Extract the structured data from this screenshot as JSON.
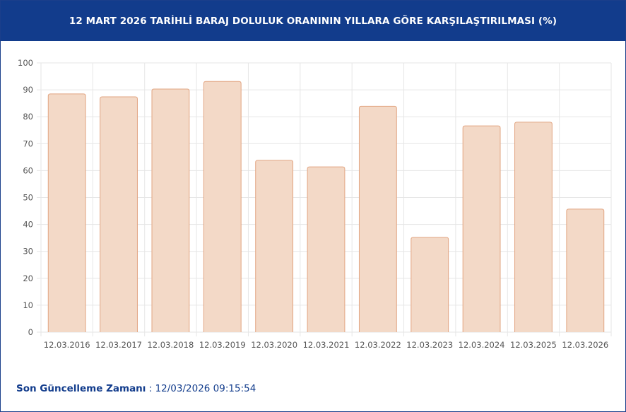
{
  "header": {
    "title": "12 MART 2026 TARİHLİ BARAJ DOLULUK ORANININ YILLARA GÖRE KARŞILAŞTIRILMASI (%)"
  },
  "footer": {
    "label": "Son Güncelleme Zamanı",
    "separator": " : ",
    "value": "12/03/2026 09:15:54"
  },
  "colors": {
    "header_bg": "#123c8c",
    "bar_fill": "#f3d9c7",
    "bar_stroke": "#e2a582",
    "footer_text": "#123c8c"
  },
  "chart_data": {
    "type": "bar",
    "title": "12 MART 2026 TARİHLİ BARAJ DOLULUK ORANININ YILLARA GÖRE KARŞILAŞTIRILMASI (%)",
    "xlabel": "",
    "ylabel": "",
    "categories": [
      "12.03.2016",
      "12.03.2017",
      "12.03.2018",
      "12.03.2019",
      "12.03.2020",
      "12.03.2021",
      "12.03.2022",
      "12.03.2023",
      "12.03.2024",
      "12.03.2025",
      "12.03.2026"
    ],
    "values": [
      88.5,
      87.4,
      90.3,
      93.1,
      63.8,
      61.4,
      83.9,
      35.2,
      76.6,
      78.0,
      45.7
    ],
    "ylim": [
      0,
      100
    ],
    "yticks": [
      0,
      10,
      20,
      30,
      40,
      50,
      60,
      70,
      80,
      90,
      100
    ],
    "grid": true,
    "legend": "none"
  }
}
